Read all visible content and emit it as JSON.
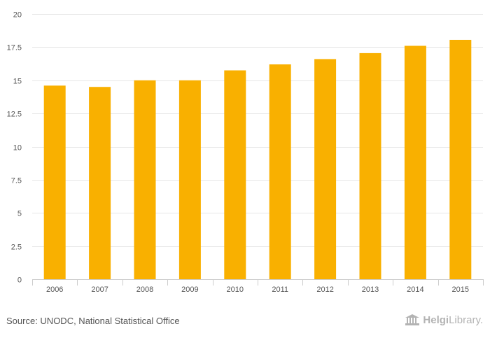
{
  "chart_data": {
    "type": "bar",
    "categories": [
      "2006",
      "2007",
      "2008",
      "2009",
      "2010",
      "2011",
      "2012",
      "2013",
      "2014",
      "2015"
    ],
    "values": [
      14.6,
      14.5,
      15.0,
      15.0,
      15.75,
      16.2,
      16.6,
      17.05,
      17.6,
      18.05
    ],
    "y_ticks": [
      "0",
      "2.5",
      "5",
      "7.5",
      "10",
      "12.5",
      "15",
      "17.5",
      "20"
    ],
    "ylim": [
      0,
      20
    ],
    "grid": true,
    "title": "",
    "xlabel": "",
    "ylabel": "",
    "bar_color": "#f9b000",
    "grid_color": "#e6e6e6",
    "axis_color": "#cccccc"
  },
  "footer": {
    "source": "Source: UNODC, National Statistical Office",
    "brand_part1": "Helgi",
    "brand_part2": "Library."
  }
}
